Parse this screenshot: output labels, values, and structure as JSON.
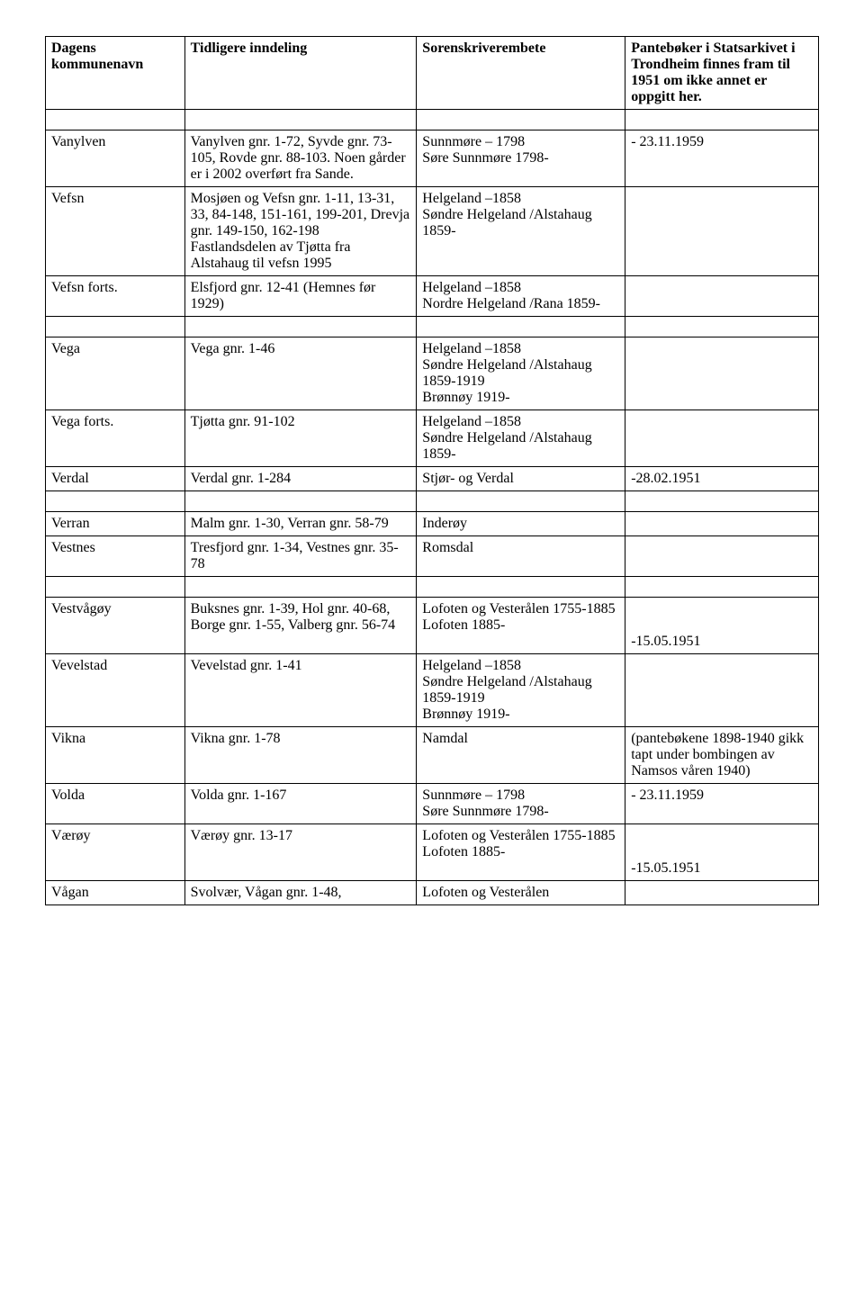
{
  "headers": {
    "col1": "Dagens kommunenavn",
    "col2": "Tidligere inndeling",
    "col3": "Sorenskriverembete",
    "col4": "Pantebøker i Statsarkivet i Trondheim finnes fram til 1951 om ikke annet er oppgitt her."
  },
  "rows": [
    {
      "c1": "",
      "c2": "",
      "c3": "",
      "c4": "",
      "spacer": true
    },
    {
      "c1": "Vanylven",
      "c2": "Vanylven gnr. 1-72, Syvde gnr. 73-105, Rovde gnr. 88-103. Noen gårder er i 2002 overført fra Sande.",
      "c3": "Sunnmøre – 1798\nSøre Sunnmøre 1798-",
      "c4": "- 23.11.1959"
    },
    {
      "c1": "Vefsn",
      "c2": "Mosjøen og Vefsn gnr. 1-11, 13-31, 33, 84-148, 151-161, 199-201, Drevja gnr. 149-150, 162-198\nFastlandsdelen av Tjøtta fra Alstahaug til vefsn 1995",
      "c3": "Helgeland –1858\nSøndre Helgeland /Alstahaug 1859-",
      "c4": ""
    },
    {
      "c1": "Vefsn forts.",
      "c2": "Elsfjord gnr. 12-41 (Hemnes før 1929)",
      "c3": "Helgeland –1858\nNordre Helgeland /Rana  1859-",
      "c4": ""
    },
    {
      "c1": "",
      "c2": "",
      "c3": "",
      "c4": "",
      "spacer": true
    },
    {
      "c1": "Vega",
      "c2": "Vega gnr. 1-46",
      "c3": "Helgeland –1858\nSøndre Helgeland /Alstahaug 1859-1919\nBrønnøy 1919-",
      "c4": ""
    },
    {
      "c1": "Vega forts.",
      "c2": "Tjøtta gnr. 91-102",
      "c3": "Helgeland –1858\nSøndre Helgeland /Alstahaug 1859-",
      "c4": ""
    },
    {
      "c1": "Verdal",
      "c2": "Verdal gnr. 1-284",
      "c3": "Stjør- og Verdal",
      "c4": "-28.02.1951"
    },
    {
      "c1": "",
      "c2": "",
      "c3": "",
      "c4": "",
      "spacer": true
    },
    {
      "c1": "Verran",
      "c2": "Malm gnr. 1-30, Verran gnr. 58-79",
      "c3": "Inderøy",
      "c4": ""
    },
    {
      "c1": "Vestnes",
      "c2": "Tresfjord gnr. 1-34, Vestnes gnr. 35-78",
      "c3": "Romsdal",
      "c4": ""
    },
    {
      "c1": "",
      "c2": "",
      "c3": "",
      "c4": "",
      "spacer": true
    },
    {
      "c1": "Vestvågøy",
      "c2": "Buksnes gnr. 1-39, Hol gnr. 40-68, Borge gnr. 1-55, Valberg gnr. 56-74",
      "c3": "Lofoten og Vesterålen 1755-1885\nLofoten 1885-",
      "c4": "\n\n-15.05.1951"
    },
    {
      "c1": "Vevelstad",
      "c2": "Vevelstad gnr. 1-41",
      "c3": "Helgeland –1858\nSøndre Helgeland /Alstahaug 1859-1919\nBrønnøy 1919-",
      "c4": ""
    },
    {
      "c1": "Vikna",
      "c2": "Vikna gnr. 1-78",
      "c3": "Namdal",
      "c4": " (pantebøkene 1898-1940 gikk tapt under bombingen av Namsos våren 1940)"
    },
    {
      "c1": "Volda",
      "c2": "Volda gnr. 1-167",
      "c3": "Sunnmøre – 1798\nSøre Sunnmøre 1798-",
      "c4": "- 23.11.1959"
    },
    {
      "c1": "Værøy",
      "c2": "Værøy gnr. 13-17",
      "c3": "Lofoten og Vesterålen 1755-1885\nLofoten 1885-",
      "c4": "\n\n-15.05.1951"
    },
    {
      "c1": "Vågan",
      "c2": "Svolvær, Vågan gnr. 1-48,",
      "c3": "Lofoten og Vesterålen",
      "c4": ""
    }
  ]
}
